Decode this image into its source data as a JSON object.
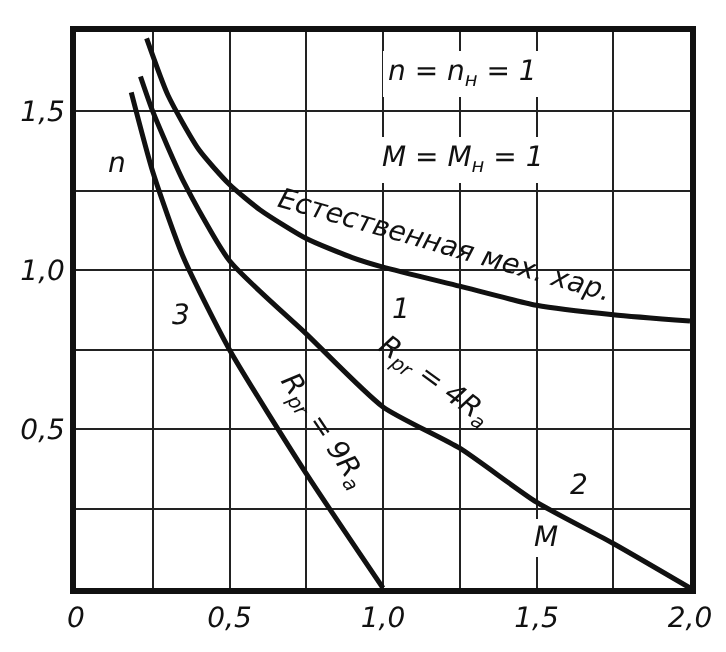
{
  "chart_data": {
    "type": "line",
    "xlabel": "M",
    "ylabel": "n",
    "series": [
      {
        "color": "#111111",
        "x": [
          0.23,
          0.3,
          0.4,
          0.5,
          0.6,
          0.75,
          0.9,
          1.0,
          1.25,
          1.5,
          1.75,
          2.0
        ],
        "values": [
          1.73,
          1.55,
          1.38,
          1.27,
          1.19,
          1.1,
          1.04,
          1.01,
          0.95,
          0.89,
          0.86,
          0.84
        ]
      },
      {
        "color": "#111111",
        "x": [
          0.21,
          0.25,
          0.35,
          0.5,
          0.75,
          1.0,
          1.25,
          1.5,
          1.75,
          2.0
        ],
        "values": [
          1.61,
          1.5,
          1.28,
          1.03,
          0.8,
          0.57,
          0.44,
          0.27,
          0.14,
          0
        ]
      },
      {
        "color": "#111111",
        "x": [
          0.18,
          0.25,
          0.35,
          0.5,
          0.75,
          1.0
        ],
        "values": [
          1.56,
          1.31,
          1.04,
          0.75,
          0.36,
          0
        ]
      }
    ],
    "xlim": [
      0,
      2
    ],
    "ylim": [
      0,
      1.75
    ],
    "xticks": [
      {
        "value": 0,
        "label": "0"
      },
      {
        "value": 0.25,
        "label": null
      },
      {
        "value": 0.5,
        "label": "0,5"
      },
      {
        "value": 0.75,
        "label": null
      },
      {
        "value": 1,
        "label": "1,0"
      },
      {
        "value": 1.25,
        "label": null
      },
      {
        "value": 1.5,
        "label": "1,5"
      },
      {
        "value": 1.75,
        "label": null
      },
      {
        "value": 2,
        "label": "2,0"
      }
    ],
    "yticks": [
      {
        "value": 0,
        "label": null
      },
      {
        "value": 0.25,
        "label": null
      },
      {
        "value": 0.5,
        "label": "0,5"
      },
      {
        "value": 0.75,
        "label": null
      },
      {
        "value": 1,
        "label": "1,0"
      },
      {
        "value": 1.25,
        "label": null
      },
      {
        "value": 1.5,
        "label": "1,5"
      }
    ],
    "grid": true,
    "marker": "none",
    "line_style": "solid",
    "annotations": [
      "n = n$_{н}$ = 1",
      "M = M$_{н}$ = 1",
      "Естественная мех. хар.",
      "1",
      "R$_{pr}$ = 4R$_{a}$",
      "2",
      "R$_{pr}$ = 9R$_{a}$",
      "3"
    ]
  }
}
